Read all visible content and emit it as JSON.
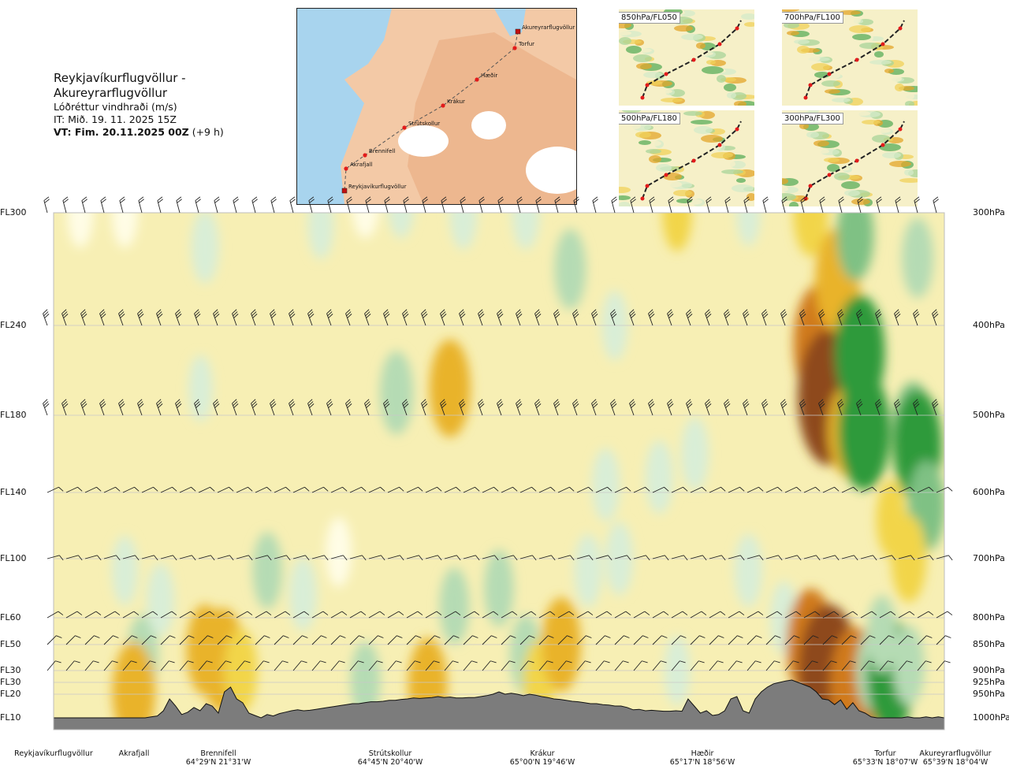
{
  "title": {
    "route": "Reykjavíkurflugvöllur - Akureyrarflugvöllur",
    "parameter": "Lóðréttur vindhraði (m/s)",
    "issue_time": "IT: Mið. 19. 11. 2025 15Z",
    "valid_time_label": "VT: Fim. 20.11.2025 00Z",
    "valid_offset": "(+9 h)"
  },
  "route_map": {
    "waypoints": [
      {
        "name": "Akureyrarflugvöllur",
        "type": "airport"
      },
      {
        "name": "Torfur",
        "type": "point"
      },
      {
        "name": "Hæðir",
        "type": "point"
      },
      {
        "name": "Krákur",
        "type": "point"
      },
      {
        "name": "Strútskollur",
        "type": "point"
      },
      {
        "name": "Brennifell",
        "type": "point"
      },
      {
        "name": "Akrafjall",
        "type": "point"
      },
      {
        "name": "Reykjavíkurflugvöllur",
        "type": "airport"
      }
    ],
    "colors": {
      "sea": "#a8d4ee",
      "land": "#f3c9a6",
      "highland": "#e8a77c",
      "glacier": "#ffffff",
      "route": "#555555",
      "point": "#e21b1b"
    }
  },
  "mini_maps": [
    {
      "label": "850hPa/FL050"
    },
    {
      "label": "700hPa/FL100"
    },
    {
      "label": "500hPa/FL180"
    },
    {
      "label": "300hPa/FL300"
    }
  ],
  "chart_data": {
    "type": "heatmap",
    "quantity": "vertical wind speed (m/s)",
    "flight_levels": [
      {
        "fl": "FL300",
        "hpa": "300hPa",
        "pressure": 300
      },
      {
        "fl": "FL240",
        "hpa": "400hPa",
        "pressure": 400
      },
      {
        "fl": "FL180",
        "hpa": "500hPa",
        "pressure": 500
      },
      {
        "fl": "FL140",
        "hpa": "600hPa",
        "pressure": 600
      },
      {
        "fl": "FL100",
        "hpa": "700hPa",
        "pressure": 700
      },
      {
        "fl": "FL60",
        "hpa": "800hPa",
        "pressure": 800
      },
      {
        "fl": "FL50",
        "hpa": "850hPa",
        "pressure": 850
      },
      {
        "fl": "FL30",
        "hpa": "900hPa",
        "pressure": 900
      },
      {
        "fl": "FL30",
        "hpa": "925hPa",
        "pressure": 925
      },
      {
        "fl": "FL20",
        "hpa": "950hPa",
        "pressure": 950
      },
      {
        "fl": "FL10",
        "hpa": "1000hPa",
        "pressure": 1000
      }
    ],
    "locations": [
      {
        "name": "Reykjavíkurflugvöllur",
        "coord": "",
        "dist": 0.0
      },
      {
        "name": "Akrafjall",
        "coord": "",
        "dist": 0.09
      },
      {
        "name": "Brennifell",
        "coord": "64°29'N 21°31'W",
        "dist": 0.19
      },
      {
        "name": "Strútskollur",
        "coord": "64°45'N 20°40'W",
        "dist": 0.38
      },
      {
        "name": "Krákur",
        "coord": "65°00'N 19°46'W",
        "dist": 0.56
      },
      {
        "name": "Hæðir",
        "coord": "65°17'N 18°56'W",
        "dist": 0.74
      },
      {
        "name": "Torfur",
        "coord": "65°33'N 18°07'W",
        "dist": 0.94
      },
      {
        "name": "Akureyrarflugvöllur",
        "coord": "65°39'N 18°04'W",
        "dist": 1.0
      }
    ],
    "terrain_pressure": [
      1000,
      1000,
      1000,
      1000,
      1000,
      1000,
      1000,
      1000,
      1000,
      1000,
      1000,
      1000,
      1000,
      1000,
      1000,
      1000,
      998,
      996,
      985,
      960,
      975,
      993,
      988,
      978,
      985,
      970,
      975,
      990,
      945,
      935,
      960,
      968,
      990,
      995,
      1000,
      993,
      996,
      991,
      988,
      985,
      983,
      985,
      984,
      982,
      980,
      978,
      976,
      974,
      972,
      970,
      970,
      968,
      966,
      966,
      965,
      963,
      963,
      961,
      960,
      958,
      959,
      958,
      957,
      955,
      957,
      956,
      958,
      958,
      957,
      957,
      955,
      953,
      950,
      945,
      950,
      948,
      950,
      953,
      950,
      952,
      955,
      957,
      960,
      961,
      963,
      965,
      966,
      968,
      970,
      970,
      972,
      973,
      975,
      975,
      978,
      983,
      982,
      985,
      984,
      985,
      986,
      986,
      985,
      986,
      960,
      975,
      990,
      985,
      995,
      993,
      985,
      960,
      955,
      985,
      990,
      960,
      945,
      935,
      928,
      925,
      922,
      920,
      925,
      930,
      935,
      945,
      960,
      962,
      972,
      962,
      982,
      968,
      985,
      990,
      998,
      1000,
      1000,
      1000,
      1000,
      1000,
      998,
      1000,
      1000,
      998,
      1000,
      998,
      1000
    ],
    "contour_levels": [
      -1.0,
      -0.5,
      -0.25,
      -0.1,
      0.1,
      0.25,
      0.5,
      1.0
    ],
    "cells": [
      {
        "x": 0.03,
        "p": 300,
        "v": 0.2
      },
      {
        "x": 0.08,
        "p": 300,
        "v": 0.2
      },
      {
        "x": 0.17,
        "p": 330,
        "v": -0.3
      },
      {
        "x": 0.165,
        "p": 470,
        "v": -0.1
      },
      {
        "x": 0.3,
        "p": 310,
        "v": -0.2
      },
      {
        "x": 0.35,
        "p": 290,
        "v": 0.3
      },
      {
        "x": 0.39,
        "p": 290,
        "v": -0.3
      },
      {
        "x": 0.385,
        "p": 475,
        "v": -0.6
      },
      {
        "x": 0.46,
        "p": 300,
        "v": -0.3
      },
      {
        "x": 0.53,
        "p": 300,
        "v": -0.3
      },
      {
        "x": 0.58,
        "p": 350,
        "v": -0.5
      },
      {
        "x": 0.63,
        "p": 400,
        "v": -0.2
      },
      {
        "x": 0.445,
        "p": 470,
        "v": 1.0
      },
      {
        "x": 0.62,
        "p": 590,
        "v": -0.3
      },
      {
        "x": 0.7,
        "p": 300,
        "v": 0.4
      },
      {
        "x": 0.78,
        "p": 300,
        "v": -0.1
      },
      {
        "x": 0.86,
        "p": 420,
        "v": 1.6
      },
      {
        "x": 0.87,
        "p": 480,
        "v": 2.1
      },
      {
        "x": 0.85,
        "p": 300,
        "v": 0.7
      },
      {
        "x": 0.88,
        "p": 360,
        "v": 1.2
      },
      {
        "x": 0.89,
        "p": 520,
        "v": 0.8
      },
      {
        "x": 0.9,
        "p": 320,
        "v": -0.8
      },
      {
        "x": 0.905,
        "p": 430,
        "v": -1.5
      },
      {
        "x": 0.91,
        "p": 520,
        "v": -1.6
      },
      {
        "x": 0.97,
        "p": 340,
        "v": -0.5
      },
      {
        "x": 0.965,
        "p": 520,
        "v": -1.0
      },
      {
        "x": 0.97,
        "p": 540,
        "v": -1.4
      },
      {
        "x": 0.98,
        "p": 620,
        "v": -0.8
      },
      {
        "x": 0.94,
        "p": 640,
        "v": 0.4
      },
      {
        "x": 0.96,
        "p": 700,
        "v": 0.7
      },
      {
        "x": 0.08,
        "p": 720,
        "v": -0.2
      },
      {
        "x": 0.1,
        "p": 870,
        "v": -0.5
      },
      {
        "x": 0.09,
        "p": 945,
        "v": 1.1
      },
      {
        "x": 0.12,
        "p": 770,
        "v": -0.3
      },
      {
        "x": 0.17,
        "p": 860,
        "v": 0.8
      },
      {
        "x": 0.19,
        "p": 880,
        "v": 1.2
      },
      {
        "x": 0.21,
        "p": 900,
        "v": 0.6
      },
      {
        "x": 0.24,
        "p": 720,
        "v": -0.4
      },
      {
        "x": 0.28,
        "p": 760,
        "v": -0.3
      },
      {
        "x": 0.32,
        "p": 690,
        "v": 0.2
      },
      {
        "x": 0.35,
        "p": 920,
        "v": -0.4
      },
      {
        "x": 0.42,
        "p": 930,
        "v": 0.9
      },
      {
        "x": 0.45,
        "p": 780,
        "v": -0.4
      },
      {
        "x": 0.5,
        "p": 750,
        "v": -0.4
      },
      {
        "x": 0.53,
        "p": 870,
        "v": -0.5
      },
      {
        "x": 0.545,
        "p": 920,
        "v": 0.5
      },
      {
        "x": 0.57,
        "p": 850,
        "v": 0.9
      },
      {
        "x": 0.6,
        "p": 720,
        "v": -0.3
      },
      {
        "x": 0.635,
        "p": 700,
        "v": -0.3
      },
      {
        "x": 0.68,
        "p": 580,
        "v": -0.3
      },
      {
        "x": 0.72,
        "p": 550,
        "v": -0.3
      },
      {
        "x": 0.7,
        "p": 900,
        "v": -0.2
      },
      {
        "x": 0.78,
        "p": 720,
        "v": -0.3
      },
      {
        "x": 0.82,
        "p": 800,
        "v": -0.3
      },
      {
        "x": 0.85,
        "p": 850,
        "v": 1.4
      },
      {
        "x": 0.87,
        "p": 900,
        "v": 2.0
      },
      {
        "x": 0.9,
        "p": 930,
        "v": 1.5
      },
      {
        "x": 0.92,
        "p": 900,
        "v": -0.6
      },
      {
        "x": 0.94,
        "p": 910,
        "v": -1.4
      },
      {
        "x": 0.96,
        "p": 890,
        "v": -0.5
      },
      {
        "x": 0.93,
        "p": 830,
        "v": -0.4
      }
    ]
  }
}
